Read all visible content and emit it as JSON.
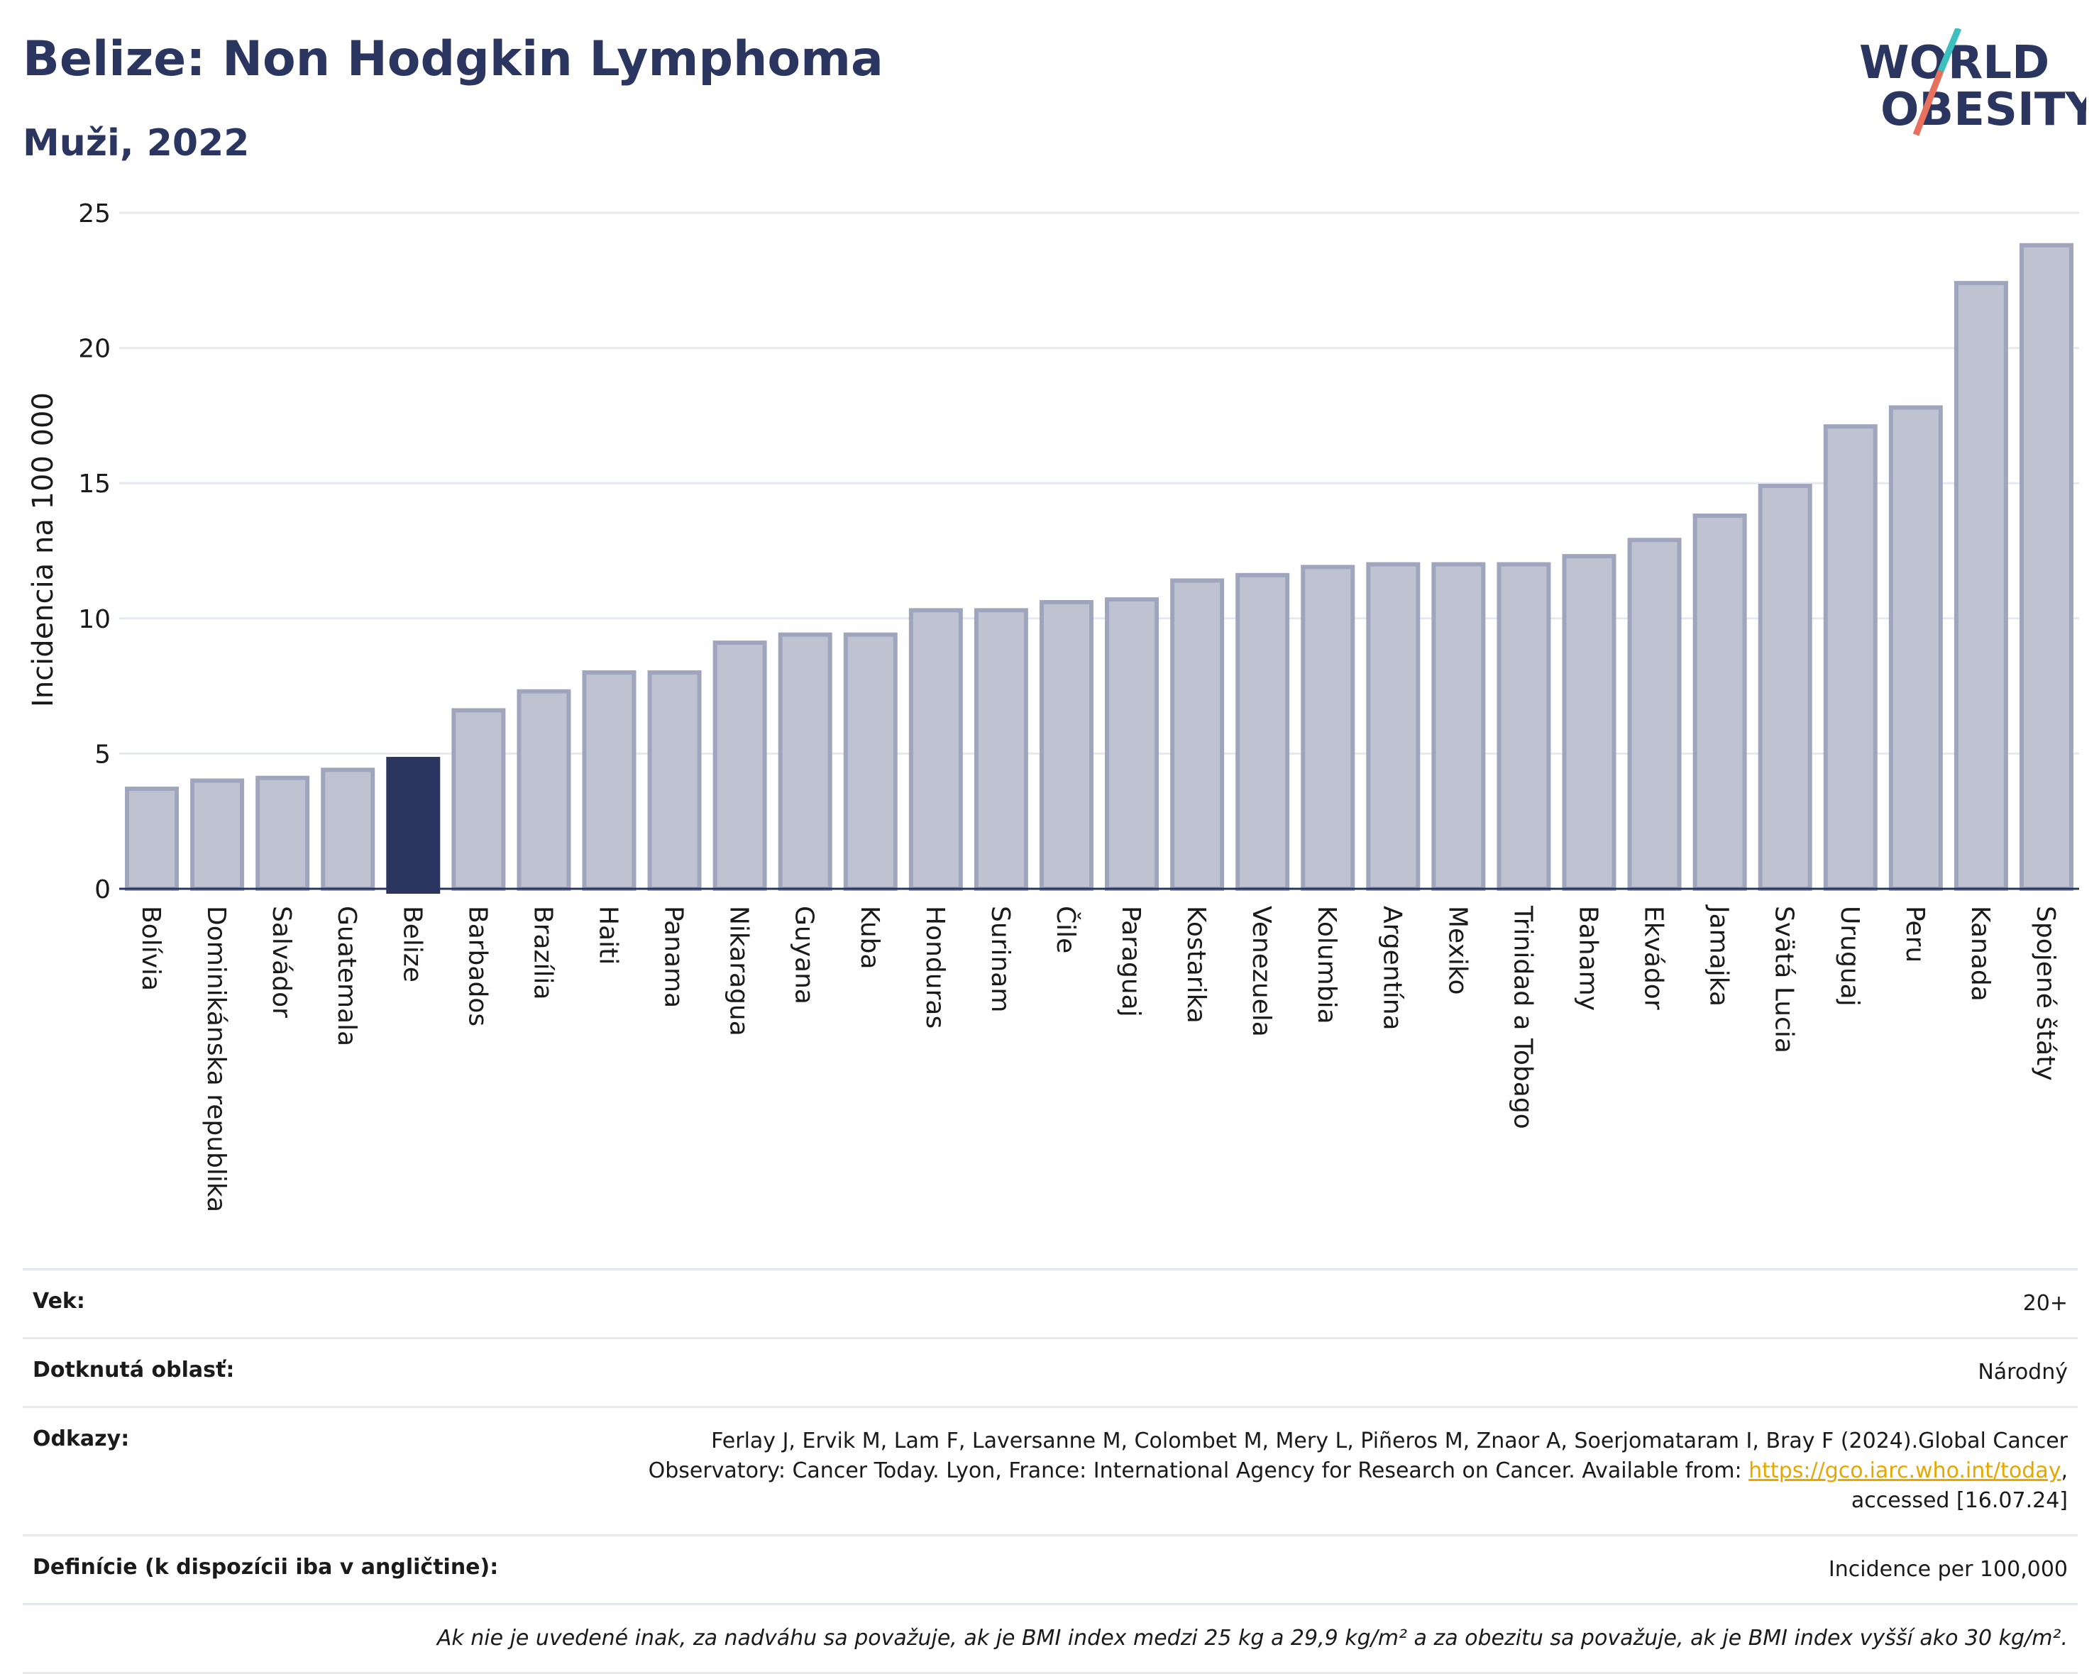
{
  "title": "Belize: Non Hodgkin Lymphoma",
  "subtitle": "Muži, 2022",
  "logo": {
    "line1": "WORLD",
    "line2": "OBESITY"
  },
  "colors": {
    "highlight": "#2a3560",
    "bar": "#bfc3d1",
    "bar_stroke": "#9fa5bd",
    "title": "#2a3560"
  },
  "chart_data": {
    "type": "bar",
    "ylabel": "Incidencia na 100 000",
    "ylim": [
      0,
      25
    ],
    "yticks": [
      0,
      5,
      10,
      15,
      20,
      25
    ],
    "highlight": "Belize",
    "grid": true,
    "categories": [
      "Bolívia",
      "Dominikánska republika",
      "Salvádor",
      "Guatemala",
      "Belize",
      "Barbados",
      "Brazília",
      "Haiti",
      "Panama",
      "Nikaragua",
      "Guyana",
      "Kuba",
      "Honduras",
      "Surinam",
      "Čile",
      "Paraguaj",
      "Kostarika",
      "Venezuela",
      "Kolumbia",
      "Argentína",
      "Mexiko",
      "Trinidad a Tobago",
      "Bahamy",
      "Ekvádor",
      "Jamajka",
      "Svätá Lucia",
      "Uruguaj",
      "Peru",
      "Kanada",
      "Spojené štáty"
    ],
    "values": [
      3.7,
      4.0,
      4.1,
      4.4,
      4.8,
      6.6,
      7.3,
      8.0,
      8.0,
      9.1,
      9.4,
      9.4,
      10.3,
      10.3,
      10.6,
      10.7,
      11.4,
      11.6,
      11.9,
      12.0,
      12.0,
      12.0,
      12.3,
      12.9,
      13.8,
      14.9,
      17.1,
      17.8,
      22.4,
      23.8
    ]
  },
  "info": {
    "age_label": "Vek:",
    "age_value": "20+",
    "area_label": "Dotknutá oblasť:",
    "area_value": "Národný",
    "refs_label": "Odkazy:",
    "refs_text1": "Ferlay J, Ervik M, Lam F, Laversanne M, Colombet M, Mery L, Piñeros M, Znaor A, Soerjomataram I, Bray F (2024).Global Cancer",
    "refs_text2": "Observatory: Cancer Today. Lyon, France: International Agency for Research on Cancer. Available from: ",
    "refs_link": "https://gco.iarc.who.int/today",
    "refs_text3": ",",
    "refs_text4": "accessed [16.07.24]",
    "def_label": "Definície (k dispozícii iba v angličtine):",
    "def_value": "Incidence per 100,000",
    "note": "Ak nie je uvedené inak, za nadváhu sa považuje, ak je BMI index medzi 25 kg a 29,9 kg/m² a za obezitu sa považuje, ak je BMI index vyšší ako 30 kg/m²."
  }
}
